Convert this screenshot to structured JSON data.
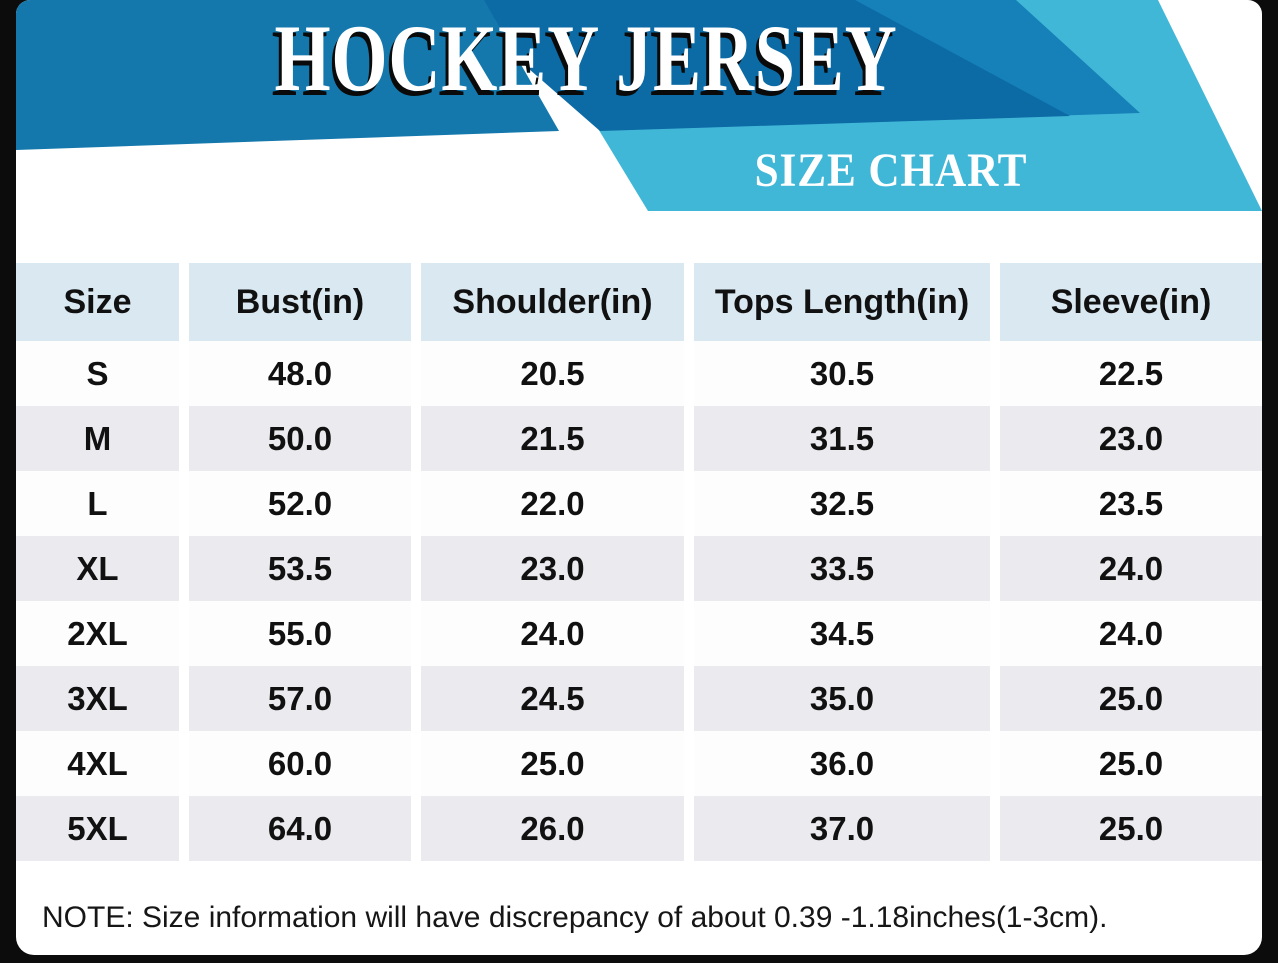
{
  "header": {
    "title": "HOCKEY JERSEY",
    "subtitle": "SIZE CHART"
  },
  "colors": {
    "frame": "#0c0c0c",
    "banner_main": "#1478ad",
    "banner_dark": "#0c6aa4",
    "banner_mid": "#1581b8",
    "ribbon_light": "#41b7d8",
    "table_header_bg": "#d9e8f1",
    "row_white": "#fdfdfe",
    "row_gray": "#eaeaef",
    "text": "#111111"
  },
  "chart_data": {
    "type": "table",
    "title": "HOCKEY JERSEY SIZE CHART",
    "columns": [
      "Size",
      "Bust(in)",
      "Shoulder(in)",
      "Tops Length(in)",
      "Sleeve(in)"
    ],
    "rows": [
      [
        "S",
        "48.0",
        "20.5",
        "30.5",
        "22.5"
      ],
      [
        "M",
        "50.0",
        "21.5",
        "31.5",
        "23.0"
      ],
      [
        "L",
        "52.0",
        "22.0",
        "32.5",
        "23.5"
      ],
      [
        "XL",
        "53.5",
        "23.0",
        "33.5",
        "24.0"
      ],
      [
        "2XL",
        "55.0",
        "24.0",
        "34.5",
        "24.0"
      ],
      [
        "3XL",
        "57.0",
        "24.5",
        "35.0",
        "25.0"
      ],
      [
        "4XL",
        "60.0",
        "25.0",
        "36.0",
        "25.0"
      ],
      [
        "5XL",
        "64.0",
        "26.0",
        "37.0",
        "25.0"
      ]
    ]
  },
  "note": "NOTE: Size information will have discrepancy of about 0.39 -1.18inches(1-3cm)."
}
